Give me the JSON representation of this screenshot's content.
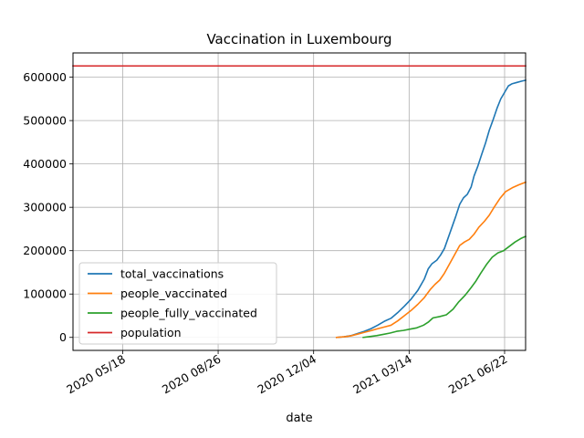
{
  "chart_data": {
    "type": "line",
    "title": "Vaccination in Luxembourg",
    "xlabel": "date",
    "ylabel": "",
    "xlim": [
      "2020-03-27",
      "2021-07-14"
    ],
    "ylim": [
      -30000,
      656000
    ],
    "grid": true,
    "legend_position": "lower-left",
    "x_ticks": [
      {
        "date": "2020-05-18",
        "label": "2020 05/18"
      },
      {
        "date": "2020-08-26",
        "label": "2020 08/26"
      },
      {
        "date": "2020-12-04",
        "label": "2020 12/04"
      },
      {
        "date": "2021-03-14",
        "label": "2021 03/14"
      },
      {
        "date": "2021-06-22",
        "label": "2021 06/22"
      }
    ],
    "y_ticks": [
      {
        "value": 0,
        "label": "0"
      },
      {
        "value": 100000,
        "label": "100000"
      },
      {
        "value": 200000,
        "label": "200000"
      },
      {
        "value": 300000,
        "label": "300000"
      },
      {
        "value": 400000,
        "label": "400000"
      },
      {
        "value": 500000,
        "label": "500000"
      },
      {
        "value": 600000,
        "label": "600000"
      }
    ],
    "series": [
      {
        "name": "total_vaccinations",
        "color": "#1f77b4",
        "points": [
          [
            "2020-12-28",
            0
          ],
          [
            "2021-01-05",
            1500
          ],
          [
            "2021-01-12",
            4000
          ],
          [
            "2021-01-19",
            9000
          ],
          [
            "2021-01-26",
            14000
          ],
          [
            "2021-02-02",
            20000
          ],
          [
            "2021-02-09",
            28000
          ],
          [
            "2021-02-16",
            37000
          ],
          [
            "2021-02-23",
            44000
          ],
          [
            "2021-03-02",
            57000
          ],
          [
            "2021-03-09",
            72000
          ],
          [
            "2021-03-16",
            88000
          ],
          [
            "2021-03-23",
            108000
          ],
          [
            "2021-03-30",
            135000
          ],
          [
            "2021-04-03",
            158000
          ],
          [
            "2021-04-07",
            170000
          ],
          [
            "2021-04-12",
            178000
          ],
          [
            "2021-04-16",
            190000
          ],
          [
            "2021-04-20",
            205000
          ],
          [
            "2021-04-24",
            230000
          ],
          [
            "2021-04-28",
            255000
          ],
          [
            "2021-05-02",
            280000
          ],
          [
            "2021-05-06",
            307000
          ],
          [
            "2021-05-10",
            322000
          ],
          [
            "2021-05-14",
            330000
          ],
          [
            "2021-05-18",
            347000
          ],
          [
            "2021-05-21",
            372000
          ],
          [
            "2021-05-25",
            395000
          ],
          [
            "2021-05-29",
            422000
          ],
          [
            "2021-06-02",
            448000
          ],
          [
            "2021-06-06",
            478000
          ],
          [
            "2021-06-10",
            502000
          ],
          [
            "2021-06-14",
            528000
          ],
          [
            "2021-06-18",
            550000
          ],
          [
            "2021-06-22",
            565000
          ],
          [
            "2021-06-26",
            580000
          ],
          [
            "2021-06-30",
            585000
          ],
          [
            "2021-07-05",
            588000
          ],
          [
            "2021-07-10",
            591000
          ],
          [
            "2021-07-14",
            593000
          ]
        ]
      },
      {
        "name": "people_vaccinated",
        "color": "#ff7f0e",
        "points": [
          [
            "2020-12-28",
            0
          ],
          [
            "2021-01-05",
            1500
          ],
          [
            "2021-01-12",
            3500
          ],
          [
            "2021-01-19",
            7500
          ],
          [
            "2021-01-26",
            11500
          ],
          [
            "2021-02-02",
            15500
          ],
          [
            "2021-02-09",
            20000
          ],
          [
            "2021-02-16",
            24000
          ],
          [
            "2021-02-23",
            28000
          ],
          [
            "2021-03-02",
            38000
          ],
          [
            "2021-03-09",
            50000
          ],
          [
            "2021-03-16",
            62000
          ],
          [
            "2021-03-23",
            76000
          ],
          [
            "2021-03-30",
            92000
          ],
          [
            "2021-04-05",
            110000
          ],
          [
            "2021-04-10",
            122000
          ],
          [
            "2021-04-15",
            132000
          ],
          [
            "2021-04-20",
            148000
          ],
          [
            "2021-04-25",
            168000
          ],
          [
            "2021-05-01",
            192000
          ],
          [
            "2021-05-06",
            212000
          ],
          [
            "2021-05-11",
            220000
          ],
          [
            "2021-05-16",
            226000
          ],
          [
            "2021-05-21",
            238000
          ],
          [
            "2021-05-26",
            254000
          ],
          [
            "2021-06-01",
            268000
          ],
          [
            "2021-06-06",
            282000
          ],
          [
            "2021-06-11",
            300000
          ],
          [
            "2021-06-17",
            320000
          ],
          [
            "2021-06-23",
            336000
          ],
          [
            "2021-06-30",
            345000
          ],
          [
            "2021-07-07",
            352000
          ],
          [
            "2021-07-14",
            358000
          ]
        ]
      },
      {
        "name": "people_fully_vaccinated",
        "color": "#2ca02c",
        "points": [
          [
            "2021-01-25",
            0
          ],
          [
            "2021-02-01",
            2000
          ],
          [
            "2021-02-08",
            4000
          ],
          [
            "2021-02-15",
            7000
          ],
          [
            "2021-02-22",
            10000
          ],
          [
            "2021-03-01",
            14000
          ],
          [
            "2021-03-08",
            16000
          ],
          [
            "2021-03-15",
            19000
          ],
          [
            "2021-03-22",
            22000
          ],
          [
            "2021-03-29",
            28000
          ],
          [
            "2021-04-03",
            35000
          ],
          [
            "2021-04-08",
            45000
          ],
          [
            "2021-04-15",
            48000
          ],
          [
            "2021-04-22",
            52000
          ],
          [
            "2021-04-29",
            65000
          ],
          [
            "2021-05-05",
            82000
          ],
          [
            "2021-05-12",
            98000
          ],
          [
            "2021-05-18",
            115000
          ],
          [
            "2021-05-23",
            130000
          ],
          [
            "2021-05-28",
            148000
          ],
          [
            "2021-06-03",
            168000
          ],
          [
            "2021-06-09",
            185000
          ],
          [
            "2021-06-15",
            195000
          ],
          [
            "2021-06-21",
            200000
          ],
          [
            "2021-06-27",
            210000
          ],
          [
            "2021-07-03",
            220000
          ],
          [
            "2021-07-09",
            228000
          ],
          [
            "2021-07-14",
            233000
          ]
        ]
      },
      {
        "name": "population",
        "color": "#d62728",
        "points": [
          [
            "2020-03-27",
            626000
          ],
          [
            "2021-07-14",
            626000
          ]
        ]
      }
    ]
  }
}
